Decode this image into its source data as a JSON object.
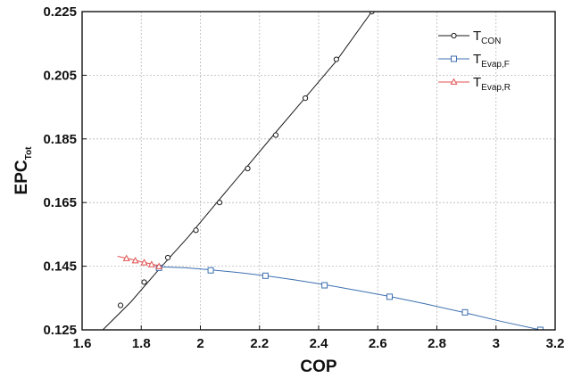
{
  "chart_data": {
    "type": "line",
    "xlabel": "COP",
    "ylabel": {
      "main": "EPC",
      "sub": "Tot"
    },
    "xlim": [
      1.6,
      3.2
    ],
    "ylim": [
      0.125,
      0.225
    ],
    "xticks": [
      "1.6",
      "1.8",
      "2",
      "2.2",
      "2.4",
      "2.6",
      "2.8",
      "3",
      "3.2"
    ],
    "yticks": [
      "0.125",
      "0.145",
      "0.165",
      "0.185",
      "0.205",
      "0.225"
    ],
    "grid": true,
    "legend_position": "top-right",
    "series": [
      {
        "name": "T",
        "name_sub": "CON",
        "color": "#1a1a1a",
        "marker": "circle",
        "line": [
          [
            1.67,
            0.125
          ],
          [
            1.765,
            0.1338
          ],
          [
            1.86,
            0.144
          ],
          [
            1.96,
            0.1543
          ],
          [
            2.06,
            0.1655
          ],
          [
            2.16,
            0.1765
          ],
          [
            2.26,
            0.1876
          ],
          [
            2.36,
            0.1985
          ],
          [
            2.46,
            0.2095
          ],
          [
            2.58,
            0.225
          ]
        ],
        "markers": [
          [
            1.73,
            0.1327
          ],
          [
            1.81,
            0.14
          ],
          [
            1.89,
            0.1477
          ],
          [
            1.985,
            0.1563
          ],
          [
            2.065,
            0.165
          ],
          [
            2.16,
            0.1757
          ],
          [
            2.255,
            0.1862
          ],
          [
            2.355,
            0.1978
          ],
          [
            2.46,
            0.21
          ],
          [
            2.58,
            0.225
          ]
        ]
      },
      {
        "name": "T",
        "name_sub": "Evap,F",
        "color": "#3d6fb0",
        "marker": "square",
        "line": [
          [
            1.86,
            0.1448
          ],
          [
            1.95,
            0.1445
          ],
          [
            2.03,
            0.1439
          ],
          [
            2.13,
            0.143
          ],
          [
            2.22,
            0.142
          ],
          [
            2.32,
            0.1407
          ],
          [
            2.42,
            0.1392
          ],
          [
            2.53,
            0.1374
          ],
          [
            2.64,
            0.1355
          ],
          [
            2.76,
            0.1332
          ],
          [
            2.89,
            0.1305
          ],
          [
            3.02,
            0.1276
          ],
          [
            3.15,
            0.125
          ]
        ],
        "markers": [
          [
            1.86,
            0.1445
          ],
          [
            2.035,
            0.1437
          ],
          [
            2.22,
            0.142
          ],
          [
            2.42,
            0.139
          ],
          [
            2.64,
            0.1354
          ],
          [
            2.895,
            0.1305
          ],
          [
            3.15,
            0.125
          ]
        ]
      },
      {
        "name": "T",
        "name_sub": "Evap,R",
        "color": "#e05252",
        "marker": "triangle",
        "line": [
          [
            1.72,
            0.1481
          ],
          [
            1.76,
            0.1473
          ],
          [
            1.8,
            0.1464
          ],
          [
            1.84,
            0.1456
          ],
          [
            1.86,
            0.145
          ]
        ],
        "markers": [
          [
            1.75,
            0.1474
          ],
          [
            1.78,
            0.1467
          ],
          [
            1.81,
            0.1461
          ],
          [
            1.835,
            0.1455
          ],
          [
            1.86,
            0.1449
          ]
        ]
      }
    ]
  }
}
